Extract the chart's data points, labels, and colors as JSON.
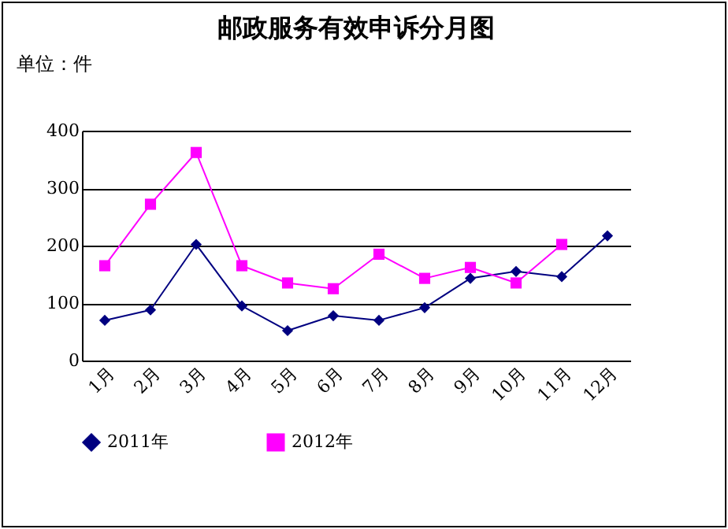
{
  "chart_data": {
    "type": "line",
    "title": "邮政服务有效申诉分月图",
    "ylabel": "单位：件",
    "categories": [
      "1月",
      "2月",
      "3月",
      "4月",
      "5月",
      "6月",
      "7月",
      "8月",
      "9月",
      "10月",
      "11月",
      "12月"
    ],
    "series": [
      {
        "name": "2011年",
        "color": "#000080",
        "marker": "diamond",
        "values": [
          70,
          88,
          202,
          95,
          52,
          78,
          70,
          92,
          143,
          155,
          146,
          217
        ]
      },
      {
        "name": "2012年",
        "color": "#ff00ff",
        "marker": "square",
        "values": [
          165,
          272,
          362,
          165,
          135,
          125,
          185,
          143,
          162,
          135,
          202,
          null
        ]
      }
    ],
    "ylim": [
      0,
      400
    ],
    "yticks": [
      0,
      100,
      200,
      300,
      400
    ],
    "grid": "y",
    "legend": "bottom"
  }
}
